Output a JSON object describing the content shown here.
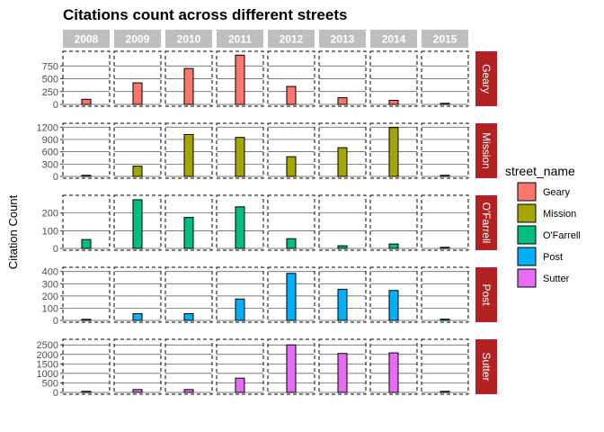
{
  "chart_data": {
    "type": "bar",
    "title": "Citations count across different streets",
    "xlabel": "",
    "ylabel": "Citation Count",
    "years": [
      "2008",
      "2009",
      "2010",
      "2011",
      "2012",
      "2013",
      "2014",
      "2015"
    ],
    "legend": {
      "title": "street_name",
      "placement": "right",
      "items": [
        "Geary",
        "Mission",
        "O'Farrell",
        "Post",
        "Sutter"
      ]
    },
    "colors": {
      "Geary": "#f8766d",
      "Mission": "#a3a500",
      "O'Farrell": "#00bf7d",
      "Post": "#00b0f6",
      "Sutter": "#e76bf3",
      "strip_x": "#bebebe",
      "strip_y": "#b22222",
      "grid": "#4d4d4d"
    },
    "grid": "major y lines",
    "facets": [
      {
        "street": "Geary",
        "ylim": [
          0,
          1000
        ],
        "yticks": [
          0,
          250,
          500,
          750
        ],
        "values": [
          100,
          420,
          700,
          960,
          350,
          130,
          80,
          20
        ]
      },
      {
        "street": "Mission",
        "ylim": [
          0,
          1250
        ],
        "yticks": [
          0,
          300,
          600,
          900,
          1200
        ],
        "values": [
          20,
          250,
          1020,
          950,
          480,
          700,
          1190,
          20
        ]
      },
      {
        "street": "O'Farrell",
        "ylim": [
          0,
          290
        ],
        "yticks": [
          0,
          100,
          200
        ],
        "values": [
          50,
          275,
          175,
          235,
          55,
          15,
          25,
          5
        ]
      },
      {
        "street": "Post",
        "ylim": [
          0,
          420
        ],
        "yticks": [
          0,
          100,
          200,
          300,
          400
        ],
        "values": [
          0,
          55,
          55,
          175,
          385,
          255,
          245,
          10
        ]
      },
      {
        "street": "Sutter",
        "ylim": [
          0,
          2700
        ],
        "yticks": [
          0,
          500,
          1000,
          1500,
          2000,
          2500
        ],
        "values": [
          20,
          150,
          150,
          750,
          2500,
          2050,
          2080,
          20
        ]
      }
    ]
  }
}
